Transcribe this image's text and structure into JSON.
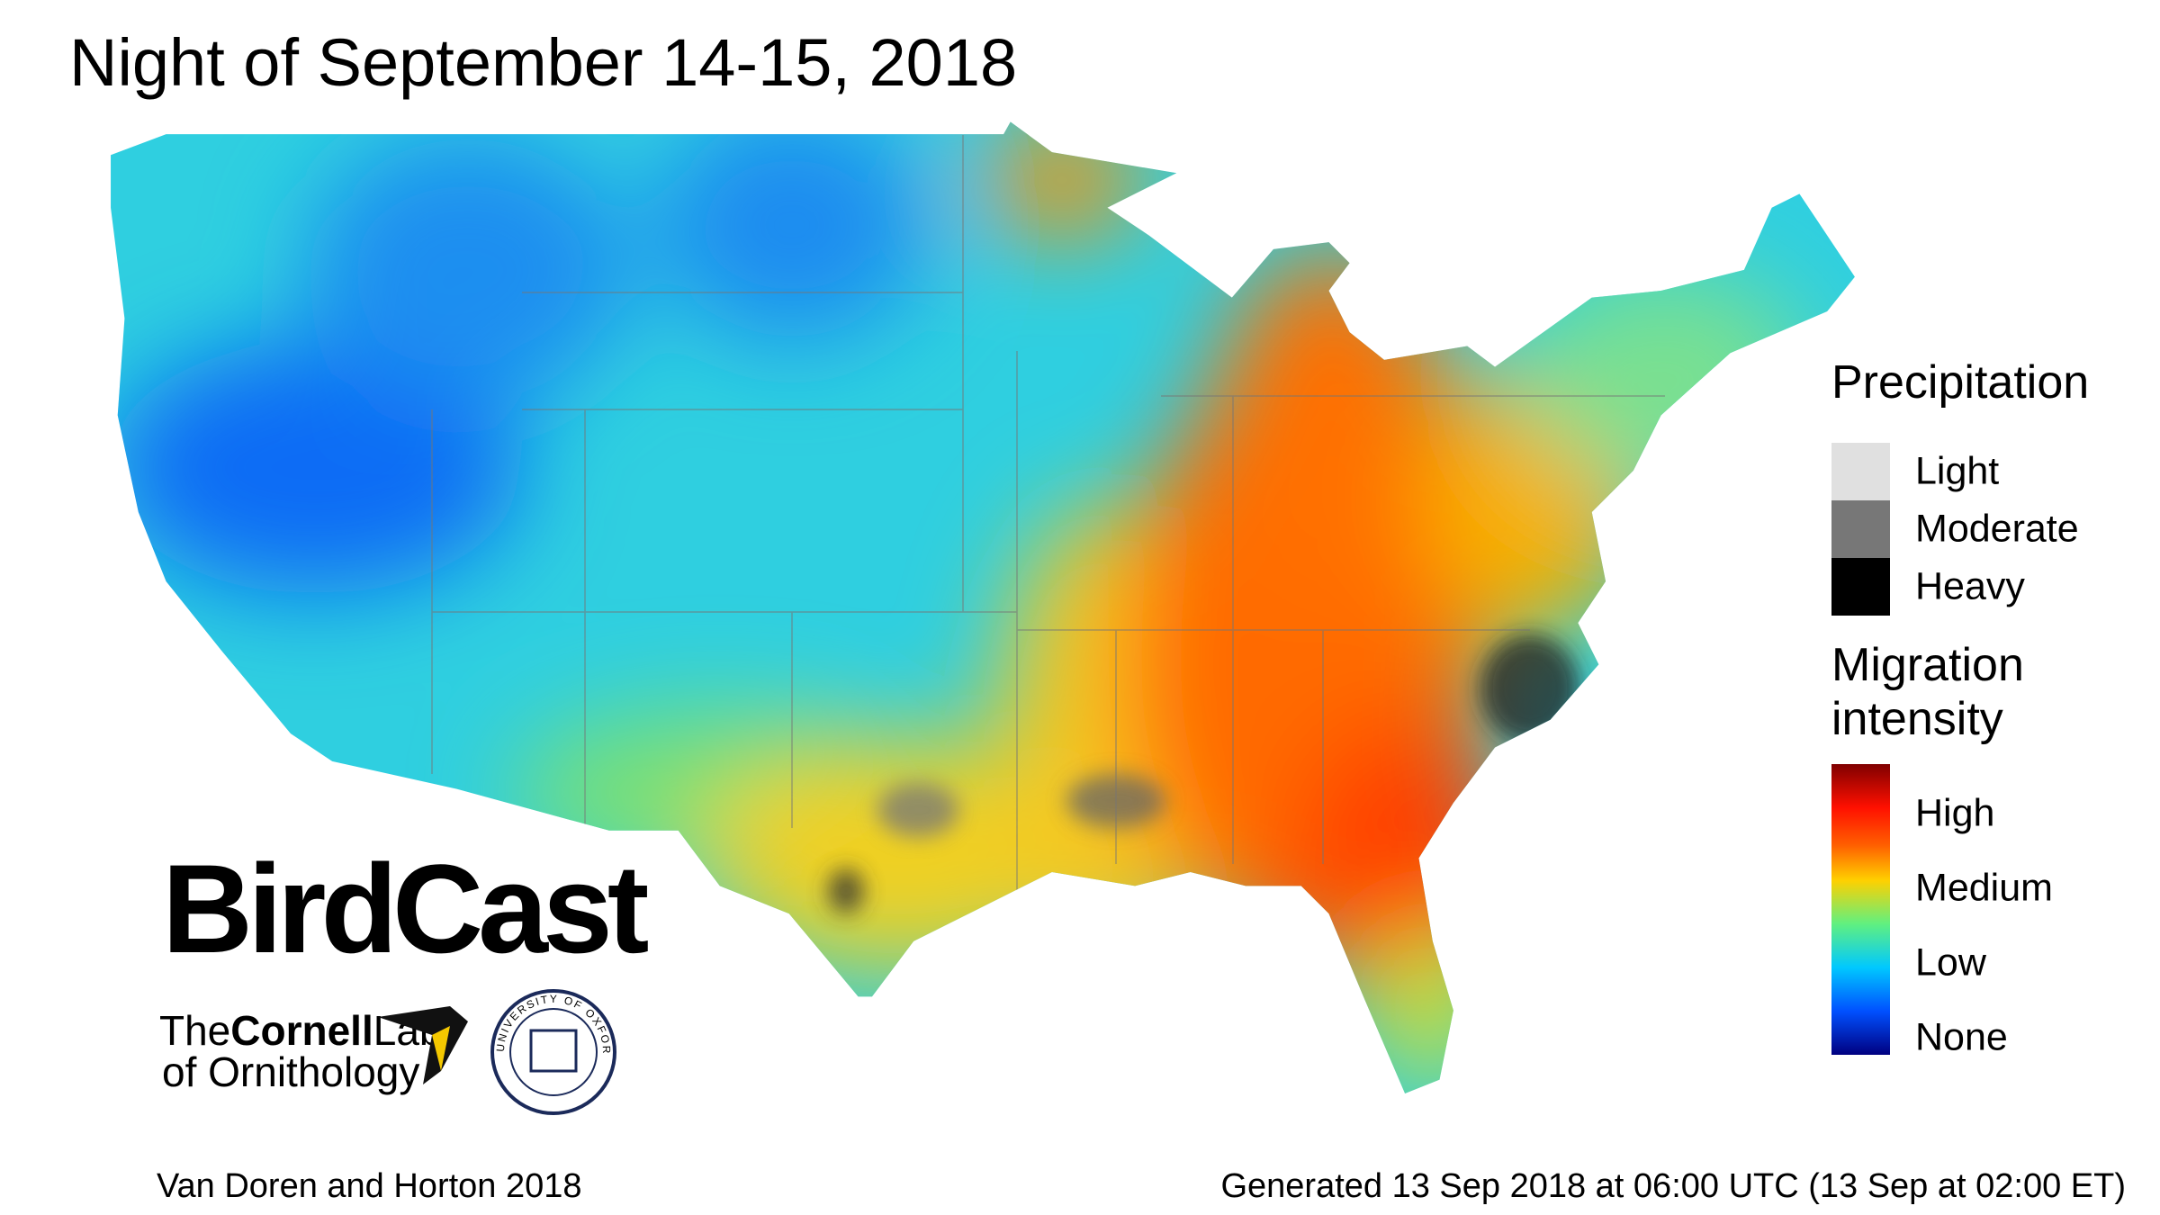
{
  "title": "Night of September 14-15, 2018",
  "legend": {
    "precipitation": {
      "title": "Precipitation",
      "items": [
        {
          "label": "Light",
          "color": "#e0e0e0"
        },
        {
          "label": "Moderate",
          "color": "#777777"
        },
        {
          "label": "Heavy",
          "color": "#000000"
        }
      ]
    },
    "migration": {
      "title_lines": [
        "Migration",
        "intensity"
      ],
      "labels": [
        "High",
        "Medium",
        "Low",
        "None"
      ]
    }
  },
  "logos": {
    "birdcast": "BirdCast",
    "cornell_the": "The",
    "cornell_name": "Cornell",
    "cornell_lab": "Lab",
    "cornell_sub": "of Ornithology",
    "oxford": "UNIVERSITY OF OXFORD"
  },
  "footer": {
    "left": "Van Doren and Horton 2018",
    "right": "Generated 13 Sep 2018 at 06:00 UTC (13 Sep at 02:00 ET)"
  }
}
